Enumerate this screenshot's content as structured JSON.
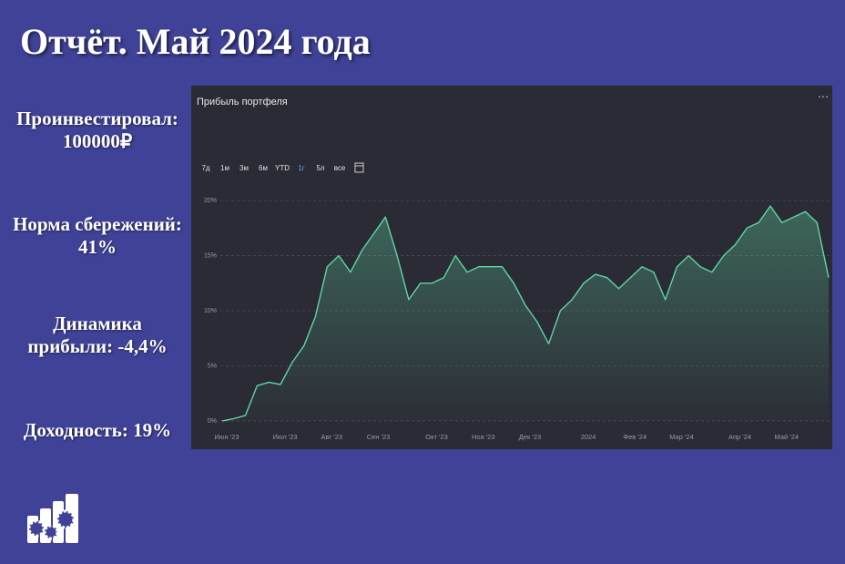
{
  "page": {
    "title": "Отчёт. Май 2024 года",
    "stats": [
      {
        "lines": [
          "Проинвестировал:",
          "100000₽"
        ]
      },
      {
        "lines": [
          "Норма сбережений:",
          "41%"
        ]
      },
      {
        "lines": [
          "Динамика",
          "прибыли: -4,4%"
        ]
      },
      {
        "lines": [
          "Доходность: 19%"
        ]
      }
    ],
    "ranges": [
      "7д",
      "1м",
      "3м",
      "6м",
      "YTD",
      "1г",
      "5л",
      "все"
    ],
    "active_range": 5
  },
  "chart_data": {
    "type": "area",
    "title": "Прибыль портфеля",
    "categories": [
      "Июн '23",
      null,
      null,
      null,
      null,
      "Июл '23",
      null,
      null,
      null,
      "Авг '23",
      null,
      null,
      null,
      "Сен '23",
      null,
      null,
      null,
      null,
      "Окт '23",
      null,
      null,
      null,
      "Ноя '23",
      null,
      null,
      null,
      "Дек '23",
      null,
      null,
      null,
      null,
      "2024",
      null,
      null,
      null,
      "Фев '24",
      null,
      null,
      null,
      "Мар '24",
      null,
      null,
      null,
      null,
      "Апр '24",
      null,
      null,
      null,
      "Май '24",
      null,
      null,
      null,
      null
    ],
    "values": [
      0,
      0.2,
      0.5,
      3.2,
      3.5,
      3.3,
      5.3,
      6.8,
      9.5,
      14,
      15,
      13.5,
      15.5,
      17,
      18.5,
      15,
      11,
      12.5,
      12.5,
      13,
      15,
      13.5,
      14,
      14,
      14,
      12.5,
      10.5,
      9,
      7,
      10,
      11,
      12.5,
      13.3,
      13,
      12,
      13,
      14,
      13.5,
      11,
      14,
      15,
      14,
      13.5,
      15,
      16,
      17.5,
      18,
      19.5,
      18,
      18.5,
      19,
      18,
      13
    ],
    "color": "#5ed6a2",
    "ylim": [
      -0.5,
      21
    ],
    "yticks": [
      {
        "value": 0,
        "label": "0%"
      },
      {
        "value": 5,
        "label": "5%"
      },
      {
        "value": 10,
        "label": "10%"
      },
      {
        "value": 15,
        "label": "15%"
      },
      {
        "value": 20,
        "label": "20%"
      }
    ],
    "grid": true
  }
}
